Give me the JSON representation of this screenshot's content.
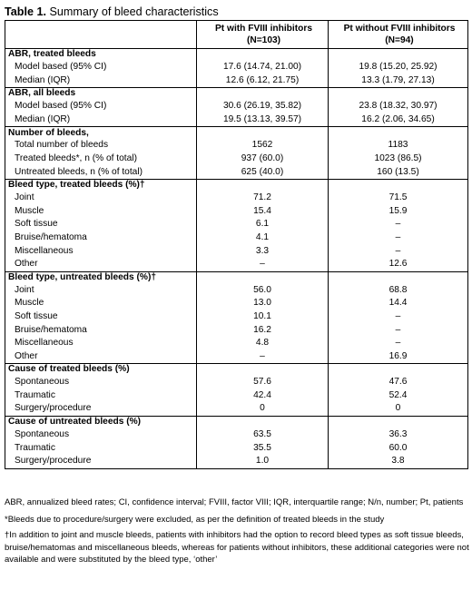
{
  "title": {
    "label": "Table 1.",
    "text": "Summary of bleed characteristics"
  },
  "header": {
    "col1": "Pt with FVIII inhibitors",
    "col1_n": "(N=103)",
    "col2": "Pt without FVIII inhibitors",
    "col2_n": "(N=94)"
  },
  "sections": [
    {
      "title": "ABR, treated bleeds",
      "rows": [
        {
          "label": "Model based (95% CI)",
          "with": "17.6 (14.74, 21.00)",
          "without": "19.8 (15.20, 25.92)"
        },
        {
          "label": "Median (IQR)",
          "with": "12.6 (6.12, 21.75)",
          "without": "13.3 (1.79, 27.13)"
        }
      ]
    },
    {
      "title": "ABR, all bleeds",
      "rows": [
        {
          "label": "Model based (95% CI)",
          "with": "30.6 (26.19, 35.82)",
          "without": "23.8 (18.32, 30.97)"
        },
        {
          "label": "Median (IQR)",
          "with": "19.5 (13.13, 39.57)",
          "without": "16.2 (2.06, 34.65)"
        }
      ]
    },
    {
      "title": "Number of bleeds,",
      "rows": [
        {
          "label": "Total number of bleeds",
          "with": "1562",
          "without": "1183"
        },
        {
          "label": "Treated bleeds*, n (% of total)",
          "with": "937 (60.0)",
          "without": "1023 (86.5)"
        },
        {
          "label": "Untreated bleeds, n (% of total)",
          "with": "625 (40.0)",
          "without": "160 (13.5)"
        }
      ]
    },
    {
      "title": "Bleed type, treated bleeds (%)†",
      "rows": [
        {
          "label": "Joint",
          "with": "71.2",
          "without": "71.5"
        },
        {
          "label": "Muscle",
          "with": "15.4",
          "without": "15.9"
        },
        {
          "label": "Soft tissue",
          "with": "6.1",
          "without": "–"
        },
        {
          "label": "Bruise/hematoma",
          "with": "4.1",
          "without": "–"
        },
        {
          "label": "Miscellaneous",
          "with": "3.3",
          "without": "–"
        },
        {
          "label": "Other",
          "with": "–",
          "without": "12.6"
        }
      ]
    },
    {
      "title": "Bleed type, untreated bleeds (%)†",
      "rows": [
        {
          "label": "Joint",
          "with": "56.0",
          "without": "68.8"
        },
        {
          "label": "Muscle",
          "with": "13.0",
          "without": "14.4"
        },
        {
          "label": "Soft tissue",
          "with": "10.1",
          "without": "–"
        },
        {
          "label": "Bruise/hematoma",
          "with": "16.2",
          "without": "–"
        },
        {
          "label": "Miscellaneous",
          "with": "4.8",
          "without": "–"
        },
        {
          "label": "Other",
          "with": "–",
          "without": "16.9"
        }
      ]
    },
    {
      "title": "Cause of treated bleeds (%)",
      "rows": [
        {
          "label": "Spontaneous",
          "with": "57.6",
          "without": "47.6"
        },
        {
          "label": "Traumatic",
          "with": "42.4",
          "without": "52.4"
        },
        {
          "label": "Surgery/procedure",
          "with": "0",
          "without": "0"
        }
      ]
    },
    {
      "title": "Cause of untreated bleeds (%)",
      "rows": [
        {
          "label": "Spontaneous",
          "with": "63.5",
          "without": "36.3"
        },
        {
          "label": "Traumatic",
          "with": "35.5",
          "without": "60.0"
        },
        {
          "label": "Surgery/procedure",
          "with": "1.0",
          "without": "3.8"
        }
      ]
    }
  ],
  "footnotes": {
    "abbrev": "ABR, annualized bleed rates; CI, confidence interval; FVIII, factor VIII; IQR, interquartile range; N/n, number; Pt, patients",
    "treated": "*Bleeds due to procedure/surgery were excluded, as per the definition of treated bleeds in the study",
    "types": "†In addition to joint and muscle bleeds, patients with inhibitors had the option to record bleed types as soft tissue bleeds, bruise/hematomas and miscellaneous bleeds, whereas for patients without inhibitors, these additional categories were not available and were substituted by the bleed type, ‘other’"
  }
}
